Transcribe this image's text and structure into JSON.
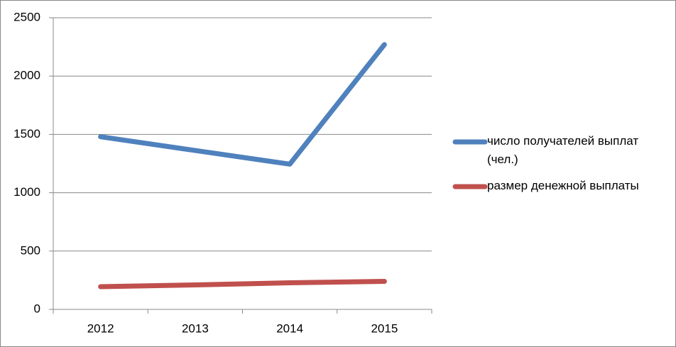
{
  "chart_data": {
    "type": "line",
    "categories": [
      "2012",
      "2013",
      "2014",
      "2015"
    ],
    "series": [
      {
        "name": "число получателей выплат (чел.)",
        "color": "#4f81bd",
        "values": [
          1480,
          1362,
          1245,
          2270
        ]
      },
      {
        "name": "размер денежной выплаты",
        "color": "#c0504d",
        "values": [
          195,
          210,
          228,
          240
        ]
      }
    ],
    "ylim": [
      0,
      2500
    ],
    "yticks": [
      0,
      500,
      1000,
      1500,
      2000,
      2500
    ],
    "grid": true,
    "legend": "right"
  }
}
